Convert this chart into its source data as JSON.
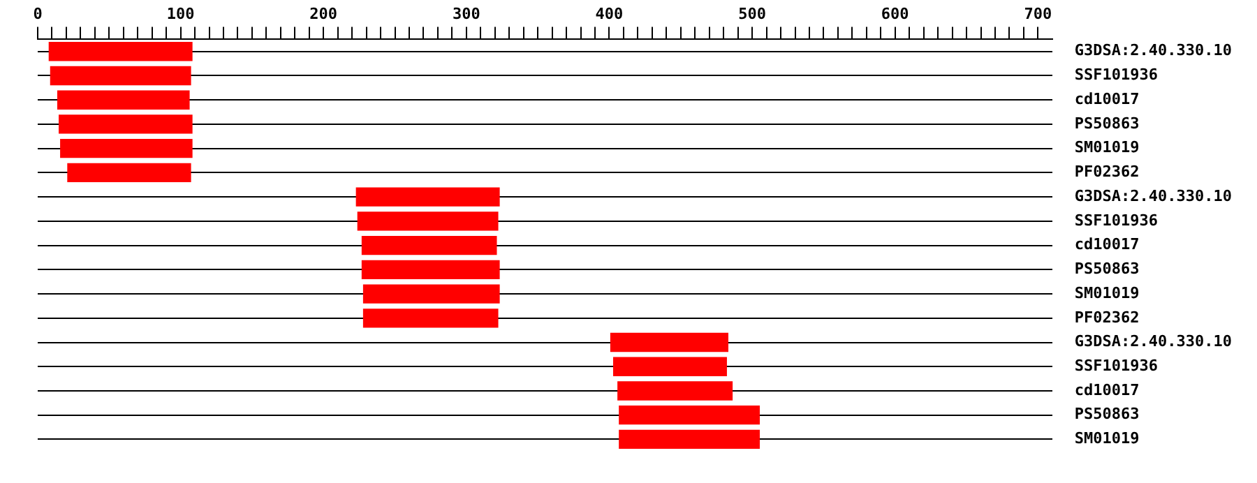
{
  "chart_data": {
    "type": "bar",
    "orientation": "horizontal",
    "categories": [
      "G3DSA:2.40.330.10",
      "SSF101936",
      "cd10017",
      "PS50863",
      "SM01019",
      "PF02362",
      "G3DSA:2.40.330.10",
      "SSF101936",
      "cd10017",
      "PS50863",
      "SM01019",
      "PF02362",
      "G3DSA:2.40.330.10",
      "SSF101936",
      "cd10017",
      "PS50863",
      "SM01019"
    ],
    "base": [
      8,
      9,
      14,
      15,
      16,
      21,
      223,
      224,
      227,
      227,
      228,
      228,
      401,
      403,
      406,
      407,
      407
    ],
    "values": [
      100,
      98,
      92,
      93,
      92,
      86,
      100,
      98,
      94,
      96,
      95,
      94,
      82,
      79,
      80,
      98,
      98
    ],
    "color": "#ff0000",
    "xlim": [
      0,
      710
    ],
    "xticks": [
      0,
      {
        "value": 10,
        "label": null
      },
      {
        "value": 20,
        "label": null
      },
      {
        "value": 30,
        "label": null
      },
      {
        "value": 40,
        "label": null
      },
      {
        "value": 50,
        "label": null
      },
      {
        "value": 60,
        "label": null
      },
      {
        "value": 70,
        "label": null
      },
      {
        "value": 80,
        "label": null
      },
      {
        "value": 90,
        "label": null
      },
      100,
      {
        "value": 110,
        "label": null
      },
      {
        "value": 120,
        "label": null
      },
      {
        "value": 130,
        "label": null
      },
      {
        "value": 140,
        "label": null
      },
      {
        "value": 150,
        "label": null
      },
      {
        "value": 160,
        "label": null
      },
      {
        "value": 170,
        "label": null
      },
      {
        "value": 180,
        "label": null
      },
      {
        "value": 190,
        "label": null
      },
      200,
      {
        "value": 210,
        "label": null
      },
      {
        "value": 220,
        "label": null
      },
      {
        "value": 230,
        "label": null
      },
      {
        "value": 240,
        "label": null
      },
      {
        "value": 250,
        "label": null
      },
      {
        "value": 260,
        "label": null
      },
      {
        "value": 270,
        "label": null
      },
      {
        "value": 280,
        "label": null
      },
      {
        "value": 290,
        "label": null
      },
      300,
      {
        "value": 310,
        "label": null
      },
      {
        "value": 320,
        "label": null
      },
      {
        "value": 330,
        "label": null
      },
      {
        "value": 340,
        "label": null
      },
      {
        "value": 350,
        "label": null
      },
      {
        "value": 360,
        "label": null
      },
      {
        "value": 370,
        "label": null
      },
      {
        "value": 380,
        "label": null
      },
      {
        "value": 390,
        "label": null
      },
      400,
      {
        "value": 410,
        "label": null
      },
      {
        "value": 420,
        "label": null
      },
      {
        "value": 430,
        "label": null
      },
      {
        "value": 440,
        "label": null
      },
      {
        "value": 450,
        "label": null
      },
      {
        "value": 460,
        "label": null
      },
      {
        "value": 470,
        "label": null
      },
      {
        "value": 480,
        "label": null
      },
      {
        "value": 490,
        "label": null
      },
      500,
      {
        "value": 510,
        "label": null
      },
      {
        "value": 520,
        "label": null
      },
      {
        "value": 530,
        "label": null
      },
      {
        "value": 540,
        "label": null
      },
      {
        "value": 550,
        "label": null
      },
      {
        "value": 560,
        "label": null
      },
      {
        "value": 570,
        "label": null
      },
      {
        "value": 580,
        "label": null
      },
      {
        "value": 590,
        "label": null
      },
      600,
      {
        "value": 610,
        "label": null
      },
      {
        "value": 620,
        "label": null
      },
      {
        "value": 630,
        "label": null
      },
      {
        "value": 640,
        "label": null
      },
      {
        "value": 650,
        "label": null
      },
      {
        "value": 660,
        "label": null
      },
      {
        "value": 670,
        "label": null
      },
      {
        "value": 680,
        "label": null
      },
      {
        "value": 690,
        "label": null
      },
      700
    ],
    "grid": "y"
  }
}
